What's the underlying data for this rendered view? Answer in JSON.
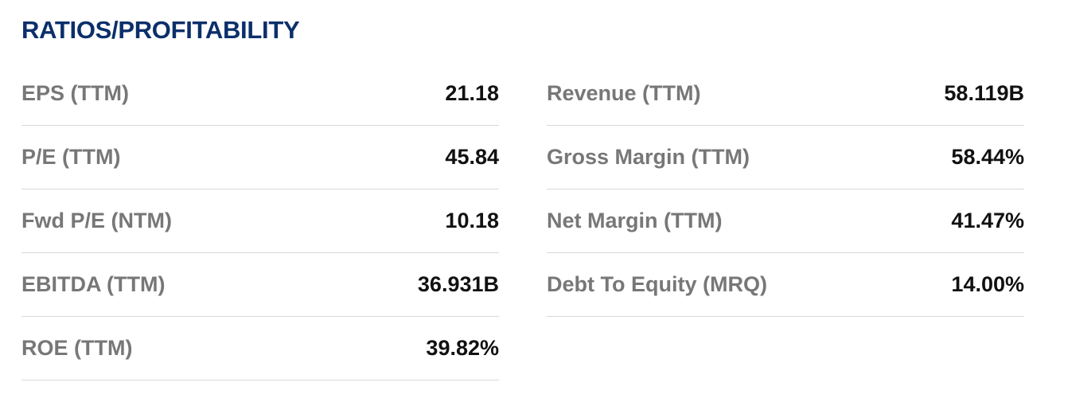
{
  "header": {
    "title": "RATIOS/PROFITABILITY"
  },
  "left": [
    {
      "label": "EPS (TTM)",
      "value": "21.18"
    },
    {
      "label": "P/E (TTM)",
      "value": "45.84"
    },
    {
      "label": "Fwd P/E (NTM)",
      "value": "10.18"
    },
    {
      "label": "EBITDA (TTM)",
      "value": "36.931B"
    },
    {
      "label": "ROE (TTM)",
      "value": "39.82%"
    }
  ],
  "right": [
    {
      "label": "Revenue (TTM)",
      "value": "58.119B"
    },
    {
      "label": "Gross Margin (TTM)",
      "value": "58.44%"
    },
    {
      "label": "Net Margin (TTM)",
      "value": "41.47%"
    },
    {
      "label": "Debt To Equity (MRQ)",
      "value": "14.00%"
    }
  ]
}
